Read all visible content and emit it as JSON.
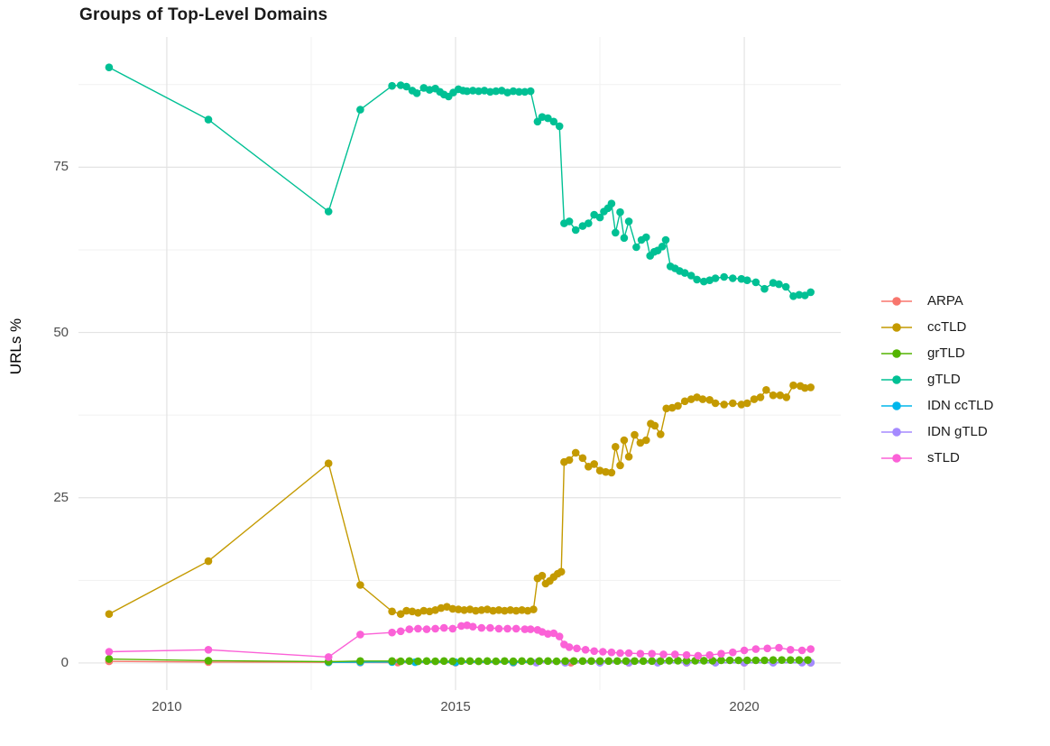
{
  "title": "Groups of Top-Level Domains",
  "y_axis_label": "URLs %",
  "chart_data": {
    "type": "line",
    "title": "Groups of Top-Level Domains",
    "xlabel": "",
    "ylabel": "URLs %",
    "legend_position": "right",
    "grid": true,
    "xlim": [
      2008.47,
      2021.67
    ],
    "ylim": [
      -4.1,
      94.7
    ],
    "x_ticks": {
      "major": [
        2010,
        2015,
        2020
      ],
      "minor": [
        2012.5,
        2017.5
      ]
    },
    "y_ticks": {
      "major": [
        0,
        25,
        50,
        75
      ],
      "minor": [
        12.5,
        37.5,
        62.5,
        87.5
      ]
    },
    "series": [
      {
        "name": "ARPA",
        "color": "#F8766D",
        "points": [
          [
            2009.0,
            0.25
          ],
          [
            2010.72,
            0.15
          ],
          [
            2012.8,
            0.1
          ],
          [
            2013.35,
            0.08
          ],
          [
            2014.0,
            0.06
          ],
          [
            2015.0,
            0.05
          ],
          [
            2016.0,
            0.05
          ],
          [
            2017.0,
            0.04
          ],
          [
            2018.0,
            0.04
          ],
          [
            2019.0,
            0.03
          ],
          [
            2020.0,
            0.03
          ],
          [
            2021.15,
            0.03
          ]
        ]
      },
      {
        "name": "IDN ccTLD",
        "color": "#00B6EB",
        "points": [
          [
            2012.8,
            0.1
          ],
          [
            2013.35,
            0.12
          ],
          [
            2013.9,
            0.15
          ],
          [
            2014.3,
            0.12
          ],
          [
            2015.0,
            0.1
          ],
          [
            2016.0,
            0.1
          ],
          [
            2016.9,
            0.08
          ],
          [
            2017.5,
            0.07
          ],
          [
            2018.5,
            0.06
          ],
          [
            2019.5,
            0.06
          ],
          [
            2020.5,
            0.06
          ],
          [
            2021.15,
            0.06
          ]
        ]
      },
      {
        "name": "IDN gTLD",
        "color": "#A58AFF",
        "points": [
          [
            2016.4,
            0.05
          ],
          [
            2016.9,
            0.05
          ],
          [
            2017.5,
            0.05
          ],
          [
            2018.0,
            0.05
          ],
          [
            2018.5,
            0.05
          ],
          [
            2019.0,
            0.05
          ],
          [
            2019.5,
            0.05
          ],
          [
            2020.0,
            0.05
          ],
          [
            2020.5,
            0.05
          ],
          [
            2021.0,
            0.05
          ],
          [
            2021.15,
            0.05
          ]
        ]
      },
      {
        "name": "ccTLD",
        "color": "#C49A00",
        "points": [
          [
            2009.0,
            7.4
          ],
          [
            2010.72,
            15.4
          ],
          [
            2012.8,
            30.2
          ],
          [
            2013.35,
            11.8
          ],
          [
            2013.9,
            7.8
          ],
          [
            2014.05,
            7.4
          ],
          [
            2014.15,
            7.9
          ],
          [
            2014.25,
            7.8
          ],
          [
            2014.35,
            7.6
          ],
          [
            2014.45,
            7.9
          ],
          [
            2014.55,
            7.8
          ],
          [
            2014.65,
            8.0
          ],
          [
            2014.75,
            8.3
          ],
          [
            2014.85,
            8.5
          ],
          [
            2014.95,
            8.2
          ],
          [
            2015.05,
            8.1
          ],
          [
            2015.15,
            8.0
          ],
          [
            2015.25,
            8.1
          ],
          [
            2015.35,
            7.9
          ],
          [
            2015.45,
            8.0
          ],
          [
            2015.55,
            8.1
          ],
          [
            2015.65,
            7.9
          ],
          [
            2015.75,
            8.0
          ],
          [
            2015.85,
            7.9
          ],
          [
            2015.95,
            8.0
          ],
          [
            2016.05,
            7.9
          ],
          [
            2016.15,
            8.0
          ],
          [
            2016.25,
            7.9
          ],
          [
            2016.35,
            8.1
          ],
          [
            2016.42,
            12.8
          ],
          [
            2016.5,
            13.2
          ],
          [
            2016.56,
            12.0
          ],
          [
            2016.63,
            12.4
          ],
          [
            2016.7,
            13.0
          ],
          [
            2016.77,
            13.5
          ],
          [
            2016.83,
            13.8
          ],
          [
            2016.88,
            30.4
          ],
          [
            2016.97,
            30.7
          ],
          [
            2017.08,
            31.8
          ],
          [
            2017.2,
            31.0
          ],
          [
            2017.3,
            29.7
          ],
          [
            2017.4,
            30.1
          ],
          [
            2017.5,
            29.1
          ],
          [
            2017.6,
            28.9
          ],
          [
            2017.7,
            28.8
          ],
          [
            2017.77,
            32.7
          ],
          [
            2017.85,
            29.9
          ],
          [
            2017.92,
            33.7
          ],
          [
            2018.0,
            31.2
          ],
          [
            2018.1,
            34.5
          ],
          [
            2018.2,
            33.3
          ],
          [
            2018.3,
            33.7
          ],
          [
            2018.38,
            36.2
          ],
          [
            2018.45,
            35.9
          ],
          [
            2018.55,
            34.6
          ],
          [
            2018.65,
            38.5
          ],
          [
            2018.75,
            38.6
          ],
          [
            2018.85,
            38.9
          ],
          [
            2018.97,
            39.6
          ],
          [
            2019.08,
            39.9
          ],
          [
            2019.18,
            40.2
          ],
          [
            2019.28,
            39.9
          ],
          [
            2019.4,
            39.8
          ],
          [
            2019.5,
            39.3
          ],
          [
            2019.65,
            39.1
          ],
          [
            2019.8,
            39.3
          ],
          [
            2019.95,
            39.1
          ],
          [
            2020.05,
            39.3
          ],
          [
            2020.17,
            39.9
          ],
          [
            2020.28,
            40.2
          ],
          [
            2020.38,
            41.3
          ],
          [
            2020.5,
            40.5
          ],
          [
            2020.62,
            40.5
          ],
          [
            2020.73,
            40.2
          ],
          [
            2020.85,
            42.0
          ],
          [
            2020.97,
            41.9
          ],
          [
            2021.05,
            41.6
          ],
          [
            2021.15,
            41.7
          ]
        ]
      },
      {
        "name": "gTLD",
        "color": "#00C094",
        "points": [
          [
            2009.0,
            90.1
          ],
          [
            2010.72,
            82.2
          ],
          [
            2012.8,
            68.3
          ],
          [
            2013.35,
            83.7
          ],
          [
            2013.9,
            87.3
          ],
          [
            2014.05,
            87.4
          ],
          [
            2014.15,
            87.2
          ],
          [
            2014.25,
            86.6
          ],
          [
            2014.33,
            86.2
          ],
          [
            2014.45,
            87.0
          ],
          [
            2014.55,
            86.7
          ],
          [
            2014.65,
            86.9
          ],
          [
            2014.73,
            86.4
          ],
          [
            2014.8,
            86.0
          ],
          [
            2014.88,
            85.7
          ],
          [
            2014.96,
            86.3
          ],
          [
            2015.05,
            86.8
          ],
          [
            2015.13,
            86.6
          ],
          [
            2015.2,
            86.5
          ],
          [
            2015.3,
            86.6
          ],
          [
            2015.4,
            86.5
          ],
          [
            2015.5,
            86.6
          ],
          [
            2015.6,
            86.4
          ],
          [
            2015.7,
            86.5
          ],
          [
            2015.8,
            86.6
          ],
          [
            2015.9,
            86.3
          ],
          [
            2016.0,
            86.5
          ],
          [
            2016.1,
            86.4
          ],
          [
            2016.2,
            86.4
          ],
          [
            2016.3,
            86.5
          ],
          [
            2016.42,
            81.9
          ],
          [
            2016.5,
            82.6
          ],
          [
            2016.6,
            82.4
          ],
          [
            2016.7,
            81.9
          ],
          [
            2016.8,
            81.2
          ],
          [
            2016.88,
            66.5
          ],
          [
            2016.97,
            66.8
          ],
          [
            2017.08,
            65.5
          ],
          [
            2017.2,
            66.1
          ],
          [
            2017.3,
            66.5
          ],
          [
            2017.4,
            67.8
          ],
          [
            2017.5,
            67.4
          ],
          [
            2017.57,
            68.3
          ],
          [
            2017.64,
            68.8
          ],
          [
            2017.7,
            69.5
          ],
          [
            2017.77,
            65.1
          ],
          [
            2017.85,
            68.2
          ],
          [
            2017.92,
            64.3
          ],
          [
            2018.0,
            66.8
          ],
          [
            2018.13,
            62.9
          ],
          [
            2018.22,
            64.0
          ],
          [
            2018.3,
            64.4
          ],
          [
            2018.37,
            61.6
          ],
          [
            2018.44,
            62.2
          ],
          [
            2018.5,
            62.4
          ],
          [
            2018.58,
            63.0
          ],
          [
            2018.64,
            64.0
          ],
          [
            2018.72,
            60.0
          ],
          [
            2018.8,
            59.7
          ],
          [
            2018.88,
            59.3
          ],
          [
            2018.97,
            59.0
          ],
          [
            2019.08,
            58.6
          ],
          [
            2019.18,
            58.0
          ],
          [
            2019.3,
            57.7
          ],
          [
            2019.4,
            57.9
          ],
          [
            2019.5,
            58.2
          ],
          [
            2019.65,
            58.4
          ],
          [
            2019.8,
            58.2
          ],
          [
            2019.95,
            58.1
          ],
          [
            2020.05,
            57.9
          ],
          [
            2020.2,
            57.6
          ],
          [
            2020.35,
            56.6
          ],
          [
            2020.5,
            57.5
          ],
          [
            2020.6,
            57.3
          ],
          [
            2020.72,
            56.9
          ],
          [
            2020.85,
            55.5
          ],
          [
            2020.95,
            55.7
          ],
          [
            2021.05,
            55.6
          ],
          [
            2021.15,
            56.1
          ]
        ]
      },
      {
        "name": "grTLD",
        "color": "#53B400",
        "points": [
          [
            2009.0,
            0.6
          ],
          [
            2010.72,
            0.35
          ],
          [
            2012.8,
            0.2
          ],
          [
            2013.35,
            0.3
          ],
          [
            2013.9,
            0.3
          ],
          [
            2014.05,
            0.25
          ],
          [
            2014.2,
            0.3
          ],
          [
            2014.35,
            0.25
          ],
          [
            2014.5,
            0.3
          ],
          [
            2014.65,
            0.25
          ],
          [
            2014.8,
            0.3
          ],
          [
            2014.95,
            0.25
          ],
          [
            2015.1,
            0.3
          ],
          [
            2015.25,
            0.3
          ],
          [
            2015.4,
            0.25
          ],
          [
            2015.55,
            0.3
          ],
          [
            2015.7,
            0.25
          ],
          [
            2015.85,
            0.3
          ],
          [
            2016.0,
            0.25
          ],
          [
            2016.15,
            0.3
          ],
          [
            2016.3,
            0.25
          ],
          [
            2016.45,
            0.3
          ],
          [
            2016.6,
            0.3
          ],
          [
            2016.75,
            0.25
          ],
          [
            2016.9,
            0.3
          ],
          [
            2017.05,
            0.3
          ],
          [
            2017.2,
            0.3
          ],
          [
            2017.35,
            0.3
          ],
          [
            2017.5,
            0.3
          ],
          [
            2017.65,
            0.3
          ],
          [
            2017.8,
            0.3
          ],
          [
            2017.95,
            0.3
          ],
          [
            2018.1,
            0.3
          ],
          [
            2018.25,
            0.3
          ],
          [
            2018.4,
            0.3
          ],
          [
            2018.55,
            0.3
          ],
          [
            2018.7,
            0.35
          ],
          [
            2018.85,
            0.35
          ],
          [
            2019.0,
            0.35
          ],
          [
            2019.15,
            0.35
          ],
          [
            2019.3,
            0.35
          ],
          [
            2019.45,
            0.35
          ],
          [
            2019.6,
            0.4
          ],
          [
            2019.75,
            0.4
          ],
          [
            2019.9,
            0.4
          ],
          [
            2020.05,
            0.4
          ],
          [
            2020.2,
            0.4
          ],
          [
            2020.35,
            0.4
          ],
          [
            2020.5,
            0.45
          ],
          [
            2020.65,
            0.45
          ],
          [
            2020.8,
            0.45
          ],
          [
            2020.95,
            0.45
          ],
          [
            2021.1,
            0.45
          ]
        ]
      },
      {
        "name": "sTLD",
        "color": "#FB61D7",
        "points": [
          [
            2009.0,
            1.7
          ],
          [
            2010.72,
            2.0
          ],
          [
            2012.8,
            0.9
          ],
          [
            2013.35,
            4.3
          ],
          [
            2013.9,
            4.6
          ],
          [
            2014.05,
            4.8
          ],
          [
            2014.2,
            5.1
          ],
          [
            2014.35,
            5.2
          ],
          [
            2014.5,
            5.1
          ],
          [
            2014.65,
            5.2
          ],
          [
            2014.8,
            5.3
          ],
          [
            2014.95,
            5.2
          ],
          [
            2015.1,
            5.6
          ],
          [
            2015.2,
            5.7
          ],
          [
            2015.3,
            5.5
          ],
          [
            2015.45,
            5.3
          ],
          [
            2015.6,
            5.3
          ],
          [
            2015.75,
            5.2
          ],
          [
            2015.9,
            5.2
          ],
          [
            2016.05,
            5.2
          ],
          [
            2016.2,
            5.1
          ],
          [
            2016.3,
            5.1
          ],
          [
            2016.42,
            5.0
          ],
          [
            2016.5,
            4.7
          ],
          [
            2016.6,
            4.4
          ],
          [
            2016.7,
            4.5
          ],
          [
            2016.8,
            4.0
          ],
          [
            2016.88,
            2.8
          ],
          [
            2016.97,
            2.4
          ],
          [
            2017.1,
            2.2
          ],
          [
            2017.25,
            2.0
          ],
          [
            2017.4,
            1.8
          ],
          [
            2017.55,
            1.7
          ],
          [
            2017.7,
            1.6
          ],
          [
            2017.85,
            1.5
          ],
          [
            2018.0,
            1.5
          ],
          [
            2018.2,
            1.4
          ],
          [
            2018.4,
            1.4
          ],
          [
            2018.6,
            1.3
          ],
          [
            2018.8,
            1.3
          ],
          [
            2019.0,
            1.2
          ],
          [
            2019.2,
            1.1
          ],
          [
            2019.4,
            1.2
          ],
          [
            2019.6,
            1.4
          ],
          [
            2019.8,
            1.6
          ],
          [
            2020.0,
            1.9
          ],
          [
            2020.2,
            2.1
          ],
          [
            2020.4,
            2.2
          ],
          [
            2020.6,
            2.3
          ],
          [
            2020.8,
            2.0
          ],
          [
            2021.0,
            1.9
          ],
          [
            2021.15,
            2.1
          ]
        ]
      }
    ]
  }
}
